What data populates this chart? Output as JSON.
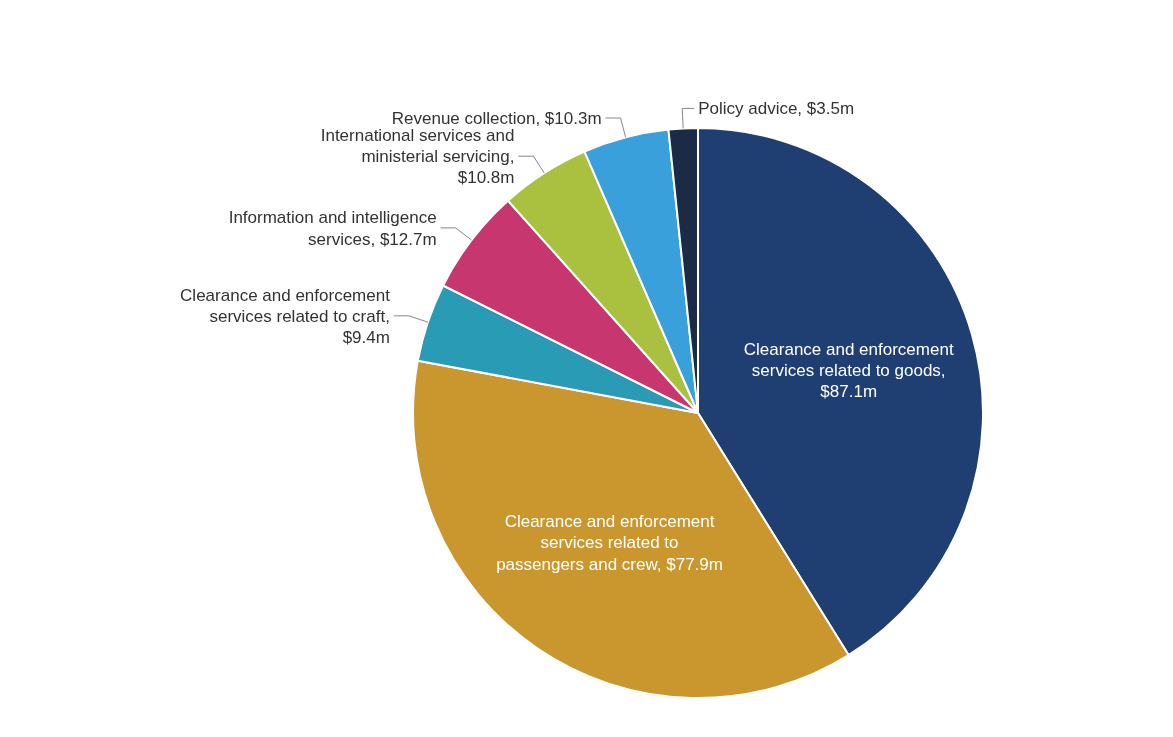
{
  "chart_data": {
    "type": "pie",
    "categories": [
      "Clearance and enforcement services related to goods, $87.1m",
      "Clearance and enforcement services related to passengers and crew, $77.9m",
      "Clearance and enforcement services related to craft, $9.4m",
      "Information and intelligence services, $12.7m",
      "International services and ministerial servicing, $10.8m",
      "Revenue collection, $10.3m",
      "Policy advice, $3.5m"
    ],
    "values": [
      87.1,
      77.9,
      9.4,
      12.7,
      10.8,
      10.3,
      3.5
    ],
    "colors": [
      "#1f3f73",
      "#c9972e",
      "#2a9bb5",
      "#c8366f",
      "#a9c13f",
      "#3aa0dc",
      "#1b2b45"
    ],
    "legend": false
  }
}
